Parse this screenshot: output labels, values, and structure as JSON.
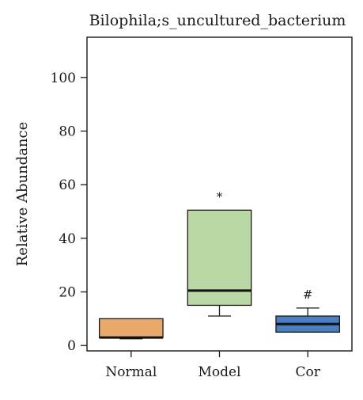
{
  "chart_data": {
    "type": "box",
    "title": "Bilophila;s_uncultured_bacterium",
    "xlabel": "",
    "ylabel": "Relative Abundance",
    "ylim": [
      -2,
      115
    ],
    "yticks": [
      0,
      20,
      40,
      60,
      80,
      100
    ],
    "ytick_labels": [
      "0",
      "20",
      "40",
      "60",
      "80",
      "100"
    ],
    "categories": [
      "Normal",
      "Model",
      "Cor"
    ],
    "boxes": [
      {
        "category": "Normal",
        "whisker_low": 2.5,
        "q1": 3,
        "median": 3,
        "q3": 10,
        "whisker_high": 10,
        "color": "#e8a96b",
        "annotation": ""
      },
      {
        "category": "Model",
        "whisker_low": 11,
        "q1": 15,
        "median": 20.5,
        "q3": 50.5,
        "whisker_high": 50.5,
        "color": "#b9d8a6",
        "annotation": "*"
      },
      {
        "category": "Cor",
        "whisker_low": 5,
        "q1": 5,
        "median": 8,
        "q3": 11,
        "whisker_high": 14,
        "color": "#4a7fc1",
        "annotation": "#"
      }
    ],
    "grid": false
  }
}
